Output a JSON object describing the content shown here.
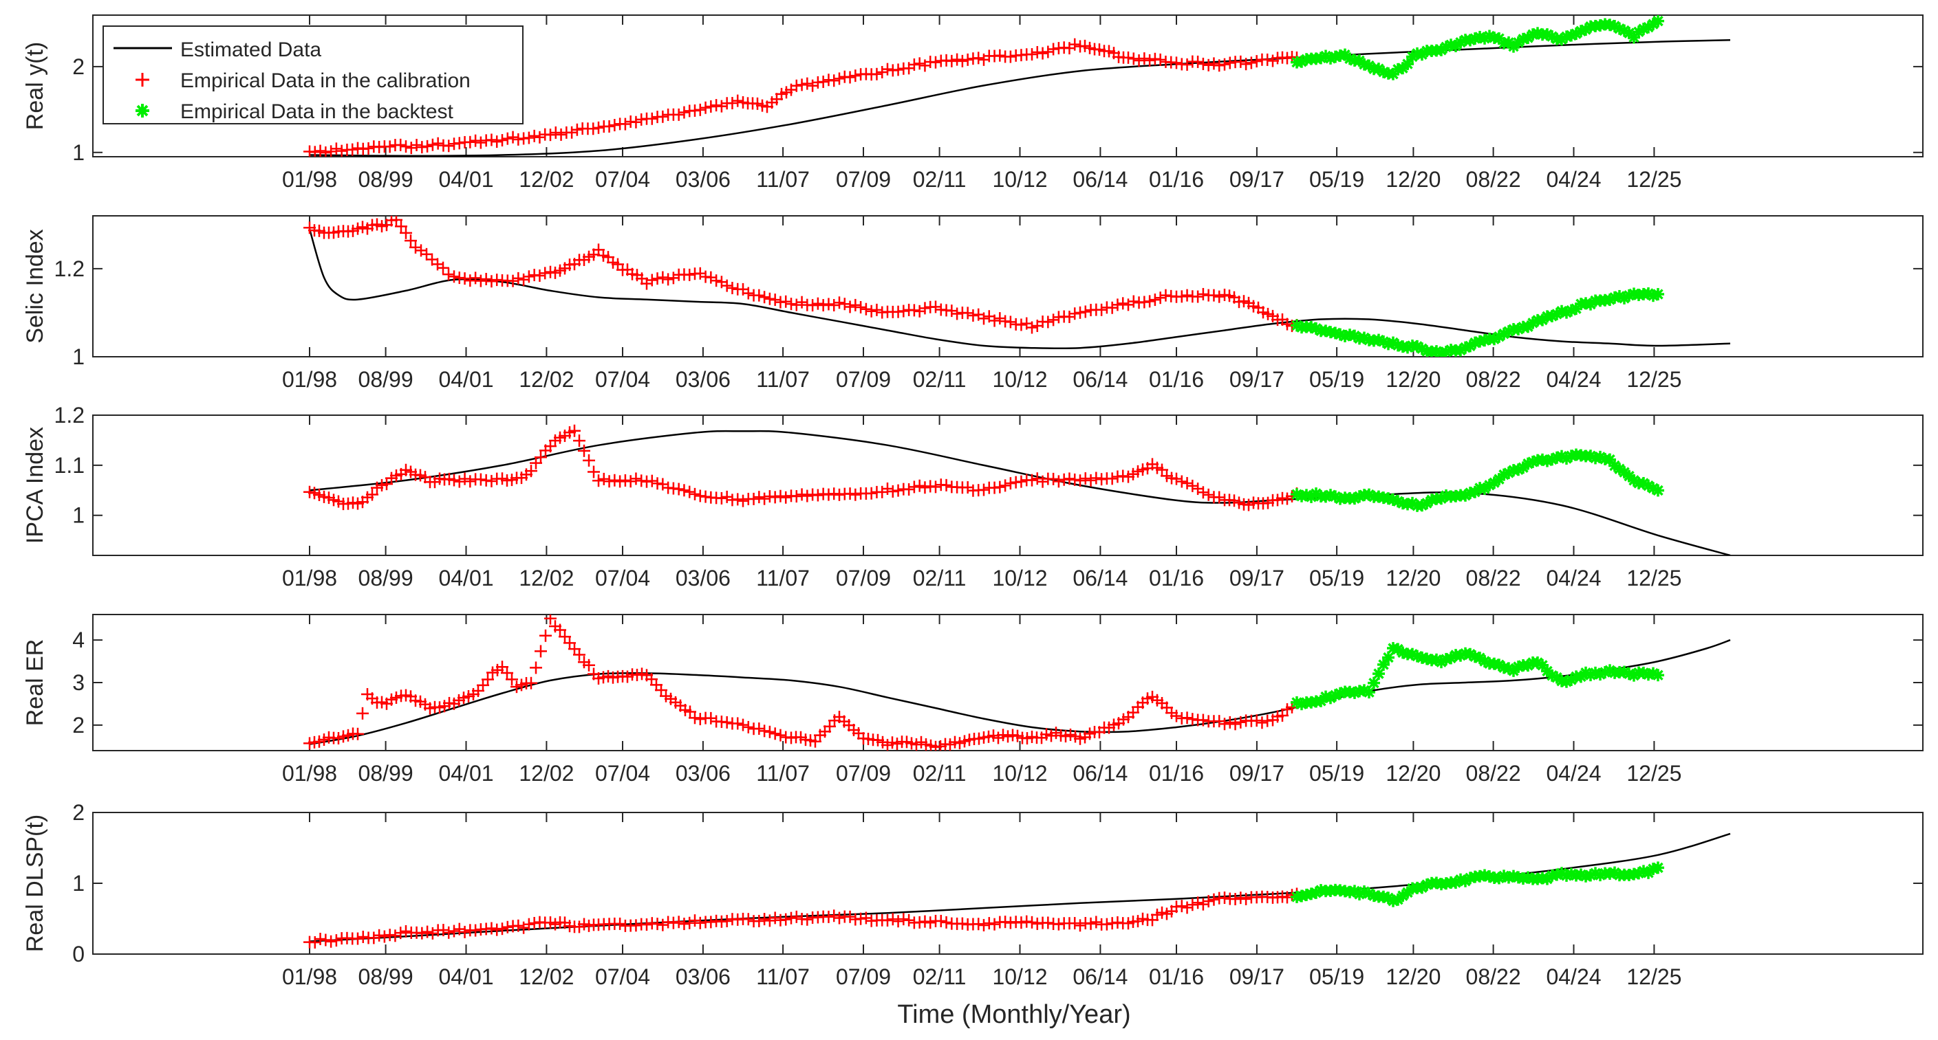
{
  "figure": {
    "xlabel": "Time (Monthly/Year)",
    "colors": {
      "estimated": "#000000",
      "calibration": "#ff0000",
      "backtest": "#00ee00",
      "axis": "#262626",
      "tick": "#262626"
    },
    "legend": {
      "position": "top-left of first panel",
      "entries": [
        {
          "label": "Estimated Data",
          "marker": "line"
        },
        {
          "label": "Empirical Data in the calibration",
          "marker": "plus"
        },
        {
          "label": "Empirical Data in the backtest",
          "marker": "star"
        }
      ]
    }
  },
  "chart_data": [
    {
      "type": "line",
      "ylabel": "Real y(t)",
      "x_unit": "years since 01/1998",
      "xlim": [
        -4.5,
        33.5
      ],
      "ylim": [
        0.95,
        2.6
      ],
      "yticks": [
        1,
        2
      ],
      "xticks": [
        0,
        1.58,
        3.25,
        4.92,
        6.5,
        8.17,
        9.83,
        11.5,
        13.08,
        14.75,
        16.42,
        18.0,
        19.67,
        21.33,
        22.92,
        24.58,
        26.25,
        27.92
      ],
      "xtick_labels": [
        "01/98",
        "08/99",
        "04/01",
        "12/02",
        "07/04",
        "03/06",
        "11/07",
        "07/09",
        "02/11",
        "10/12",
        "06/14",
        "01/16",
        "09/17",
        "05/19",
        "12/20",
        "08/22",
        "04/24",
        "12/25"
      ],
      "series": [
        {
          "name": "Estimated Data",
          "style": "line",
          "x": [
            0,
            2,
            4,
            6,
            8,
            10,
            12,
            14,
            16,
            18,
            20,
            22,
            24,
            26,
            28,
            29.5
          ],
          "y": [
            0.97,
            0.96,
            0.97,
            1.02,
            1.15,
            1.33,
            1.55,
            1.78,
            1.95,
            2.03,
            2.09,
            2.15,
            2.2,
            2.25,
            2.29,
            2.31
          ]
        },
        {
          "name": "Empirical Data in the calibration",
          "style": "plus",
          "x": [
            0,
            1,
            2,
            3,
            4,
            5,
            6,
            7,
            8,
            9,
            9.5,
            10,
            11,
            12,
            13,
            14,
            15,
            16,
            16.5,
            17,
            18,
            19,
            20,
            20.5
          ],
          "y": [
            1.0,
            1.05,
            1.07,
            1.1,
            1.15,
            1.2,
            1.3,
            1.38,
            1.5,
            1.6,
            1.55,
            1.75,
            1.85,
            1.95,
            2.05,
            2.1,
            2.15,
            2.25,
            2.18,
            2.1,
            2.05,
            2.02,
            2.08,
            2.12
          ]
        },
        {
          "name": "Empirical Data in the backtest",
          "style": "star",
          "x": [
            20.5,
            21,
            21.5,
            22,
            22.5,
            23,
            23.5,
            24,
            24.5,
            25,
            25.5,
            26,
            26.5,
            27,
            27.5,
            28
          ],
          "y": [
            2.05,
            2.1,
            2.13,
            2.0,
            1.9,
            2.15,
            2.2,
            2.3,
            2.35,
            2.25,
            2.4,
            2.3,
            2.45,
            2.5,
            2.35,
            2.55
          ]
        }
      ]
    },
    {
      "type": "line",
      "ylabel": "Selic Index",
      "x_unit": "years since 01/1998",
      "xlim": [
        -4.5,
        33.5
      ],
      "ylim": [
        1.0,
        1.32
      ],
      "yticks": [
        1,
        1.2
      ],
      "xticks": [
        0,
        1.58,
        3.25,
        4.92,
        6.5,
        8.17,
        9.83,
        11.5,
        13.08,
        14.75,
        16.42,
        18.0,
        19.67,
        21.33,
        22.92,
        24.58,
        26.25,
        27.92
      ],
      "xtick_labels": [
        "01/98",
        "08/99",
        "04/01",
        "12/02",
        "07/04",
        "03/06",
        "11/07",
        "07/09",
        "02/11",
        "10/12",
        "06/14",
        "01/16",
        "09/17",
        "05/19",
        "12/20",
        "08/22",
        "04/24",
        "12/25"
      ],
      "series": [
        {
          "name": "Estimated Data",
          "style": "line",
          "x": [
            0,
            0.3,
            0.6,
            1,
            2,
            3,
            4,
            5,
            6,
            7,
            8,
            9,
            10,
            11,
            12,
            13,
            14,
            15,
            16,
            17,
            18,
            19,
            20,
            21,
            22,
            23,
            24,
            25,
            26,
            27,
            28,
            29.5
          ],
          "y": [
            1.29,
            1.18,
            1.14,
            1.13,
            1.15,
            1.175,
            1.17,
            1.15,
            1.135,
            1.13,
            1.125,
            1.12,
            1.1,
            1.08,
            1.06,
            1.04,
            1.025,
            1.02,
            1.02,
            1.03,
            1.045,
            1.06,
            1.075,
            1.085,
            1.085,
            1.075,
            1.06,
            1.045,
            1.035,
            1.03,
            1.025,
            1.03
          ]
        },
        {
          "name": "Empirical Data in the calibration",
          "style": "plus",
          "x": [
            0,
            0.5,
            1,
            1.5,
            1.8,
            2.2,
            3,
            4,
            5,
            5.5,
            6,
            6.5,
            7,
            8,
            9,
            10,
            11,
            12,
            13,
            14,
            15,
            16,
            17,
            18,
            19,
            19.5,
            20,
            20.5
          ],
          "y": [
            1.29,
            1.28,
            1.29,
            1.3,
            1.31,
            1.25,
            1.18,
            1.17,
            1.19,
            1.21,
            1.24,
            1.2,
            1.17,
            1.19,
            1.15,
            1.12,
            1.12,
            1.1,
            1.11,
            1.09,
            1.07,
            1.1,
            1.12,
            1.14,
            1.14,
            1.12,
            1.09,
            1.07
          ]
        },
        {
          "name": "Empirical Data in the backtest",
          "style": "star",
          "x": [
            20.5,
            21,
            21.5,
            22,
            22.5,
            23,
            23.5,
            24,
            24.5,
            25,
            25.5,
            26,
            26.5,
            27,
            27.5,
            28
          ],
          "y": [
            1.07,
            1.06,
            1.05,
            1.04,
            1.03,
            1.02,
            1.01,
            1.02,
            1.04,
            1.06,
            1.08,
            1.1,
            1.12,
            1.13,
            1.14,
            1.14
          ]
        }
      ]
    },
    {
      "type": "line",
      "ylabel": "IPCA Index",
      "x_unit": "years since 01/1998",
      "xlim": [
        -4.5,
        33.5
      ],
      "ylim": [
        0.92,
        1.2
      ],
      "yticks": [
        1,
        1.1,
        1.2
      ],
      "xticks": [
        0,
        1.58,
        3.25,
        4.92,
        6.5,
        8.17,
        9.83,
        11.5,
        13.08,
        14.75,
        16.42,
        18.0,
        19.67,
        21.33,
        22.92,
        24.58,
        26.25,
        27.92
      ],
      "xtick_labels": [
        "01/98",
        "08/99",
        "04/01",
        "12/02",
        "07/04",
        "03/06",
        "11/07",
        "07/09",
        "02/11",
        "10/12",
        "06/14",
        "01/16",
        "09/17",
        "05/19",
        "12/20",
        "08/22",
        "04/24",
        "12/25"
      ],
      "series": [
        {
          "name": "Estimated Data",
          "style": "line",
          "x": [
            0,
            2,
            4,
            6,
            8,
            9,
            10,
            12,
            14,
            16,
            18,
            19,
            20,
            22,
            24,
            26,
            28,
            29.5
          ],
          "y": [
            1.05,
            1.07,
            1.1,
            1.14,
            1.165,
            1.168,
            1.165,
            1.14,
            1.1,
            1.06,
            1.03,
            1.025,
            1.03,
            1.04,
            1.045,
            1.02,
            0.96,
            0.92
          ]
        },
        {
          "name": "Empirical Data in the calibration",
          "style": "plus",
          "x": [
            0,
            0.5,
            1,
            1.5,
            2,
            2.5,
            3,
            4,
            4.5,
            5,
            5.5,
            6,
            7,
            8,
            9,
            10,
            11,
            12,
            13,
            14,
            15,
            16,
            17,
            17.5,
            18,
            19,
            19.5,
            20,
            20.5
          ],
          "y": [
            1.05,
            1.03,
            1.02,
            1.06,
            1.09,
            1.07,
            1.07,
            1.07,
            1.08,
            1.14,
            1.17,
            1.07,
            1.07,
            1.04,
            1.03,
            1.04,
            1.04,
            1.05,
            1.06,
            1.05,
            1.07,
            1.07,
            1.08,
            1.1,
            1.07,
            1.03,
            1.02,
            1.03,
            1.04
          ]
        },
        {
          "name": "Empirical Data in the backtest",
          "style": "star",
          "x": [
            20.5,
            21,
            21.5,
            22,
            22.5,
            23,
            23.5,
            24,
            24.5,
            25,
            25.5,
            26,
            26.5,
            27,
            27.5,
            28
          ],
          "y": [
            1.04,
            1.04,
            1.035,
            1.04,
            1.03,
            1.02,
            1.035,
            1.04,
            1.06,
            1.09,
            1.11,
            1.115,
            1.12,
            1.11,
            1.07,
            1.05
          ]
        }
      ]
    },
    {
      "type": "line",
      "ylabel": "Real ER",
      "x_unit": "years since 01/1998",
      "xlim": [
        -4.5,
        33.5
      ],
      "ylim": [
        1.4,
        4.6
      ],
      "yticks": [
        2,
        3,
        4
      ],
      "xticks": [
        0,
        1.58,
        3.25,
        4.92,
        6.5,
        8.17,
        9.83,
        11.5,
        13.08,
        14.75,
        16.42,
        18.0,
        19.67,
        21.33,
        22.92,
        24.58,
        26.25,
        27.92
      ],
      "xtick_labels": [
        "01/98",
        "08/99",
        "04/01",
        "12/02",
        "07/04",
        "03/06",
        "11/07",
        "07/09",
        "02/11",
        "10/12",
        "06/14",
        "01/16",
        "09/17",
        "05/19",
        "12/20",
        "08/22",
        "04/24",
        "12/25"
      ],
      "series": [
        {
          "name": "Estimated Data",
          "style": "line",
          "x": [
            0,
            1,
            2,
            3,
            4,
            5,
            6,
            7,
            8,
            9,
            10,
            11,
            12,
            13,
            14,
            15,
            16,
            17,
            18,
            19,
            20,
            21,
            22,
            23,
            24,
            25,
            26,
            27,
            28,
            29,
            29.5
          ],
          "y": [
            1.55,
            1.75,
            2.05,
            2.4,
            2.75,
            3.05,
            3.2,
            3.22,
            3.18,
            3.12,
            3.05,
            2.9,
            2.65,
            2.4,
            2.15,
            1.95,
            1.85,
            1.85,
            1.95,
            2.1,
            2.3,
            2.55,
            2.8,
            2.95,
            3.0,
            3.05,
            3.15,
            3.3,
            3.5,
            3.8,
            4.0
          ]
        },
        {
          "name": "Empirical Data in the calibration",
          "style": "plus",
          "x": [
            0,
            0.5,
            1,
            1.2,
            1.5,
            2,
            2.5,
            3,
            3.5,
            3.8,
            4,
            4.3,
            4.6,
            5,
            5.5,
            6,
            6.5,
            7,
            7.5,
            8,
            9,
            10,
            10.5,
            11,
            11.5,
            12,
            12.5,
            13,
            13.5,
            14,
            14.5,
            15,
            15.5,
            16,
            16.5,
            17,
            17.5,
            18,
            19,
            20,
            20.5
          ],
          "y": [
            1.6,
            1.7,
            1.8,
            2.7,
            2.5,
            2.7,
            2.4,
            2.5,
            2.8,
            3.2,
            3.4,
            2.9,
            3.0,
            4.5,
            3.8,
            3.1,
            3.15,
            3.2,
            2.6,
            2.2,
            2.0,
            1.7,
            1.65,
            2.2,
            1.7,
            1.55,
            1.6,
            1.5,
            1.6,
            1.7,
            1.75,
            1.7,
            1.8,
            1.7,
            1.9,
            2.2,
            2.7,
            2.2,
            2.05,
            2.1,
            2.5
          ]
        },
        {
          "name": "Empirical Data in the backtest",
          "style": "star",
          "x": [
            20.5,
            21,
            21.5,
            22,
            22.5,
            23,
            23.5,
            24,
            24.5,
            25,
            25.5,
            26,
            26.5,
            27,
            27.5,
            28
          ],
          "y": [
            2.5,
            2.6,
            2.75,
            2.8,
            3.8,
            3.6,
            3.5,
            3.7,
            3.45,
            3.3,
            3.5,
            3.0,
            3.2,
            3.25,
            3.2,
            3.2
          ]
        }
      ]
    },
    {
      "type": "line",
      "ylabel": "Real DLSP(t)",
      "x_unit": "years since 01/1998",
      "xlim": [
        -4.5,
        33.5
      ],
      "ylim": [
        0,
        2
      ],
      "yticks": [
        0,
        1,
        2
      ],
      "xticks": [
        0,
        1.58,
        3.25,
        4.92,
        6.5,
        8.17,
        9.83,
        11.5,
        13.08,
        14.75,
        16.42,
        18.0,
        19.67,
        21.33,
        22.92,
        24.58,
        26.25,
        27.92
      ],
      "xtick_labels": [
        "01/98",
        "08/99",
        "04/01",
        "12/02",
        "07/04",
        "03/06",
        "11/07",
        "07/09",
        "02/11",
        "10/12",
        "06/14",
        "01/16",
        "09/17",
        "05/19",
        "12/20",
        "08/22",
        "04/24",
        "12/25"
      ],
      "series": [
        {
          "name": "Estimated Data",
          "style": "line",
          "x": [
            0,
            2,
            4,
            6,
            8,
            10,
            12,
            14,
            16,
            18,
            20,
            22,
            24,
            26,
            28,
            29.5
          ],
          "y": [
            0.18,
            0.25,
            0.33,
            0.4,
            0.47,
            0.53,
            0.58,
            0.65,
            0.72,
            0.78,
            0.85,
            0.93,
            1.05,
            1.2,
            1.4,
            1.7
          ]
        },
        {
          "name": "Empirical Data in the calibration",
          "style": "plus",
          "x": [
            0,
            1,
            2,
            3,
            4,
            5,
            5.5,
            6,
            7,
            8,
            9,
            10,
            11,
            12,
            13,
            14,
            15,
            16,
            17,
            17.5,
            18,
            19,
            20,
            20.5
          ],
          "y": [
            0.18,
            0.22,
            0.3,
            0.33,
            0.35,
            0.45,
            0.4,
            0.42,
            0.42,
            0.45,
            0.48,
            0.5,
            0.52,
            0.48,
            0.45,
            0.42,
            0.45,
            0.42,
            0.45,
            0.5,
            0.65,
            0.78,
            0.82,
            0.83
          ]
        },
        {
          "name": "Empirical Data in the backtest",
          "style": "star",
          "x": [
            20.5,
            21,
            21.5,
            22,
            22.5,
            23,
            23.5,
            24,
            24.5,
            25,
            25.5,
            26,
            26.5,
            27,
            27.5,
            28
          ],
          "y": [
            0.83,
            0.88,
            0.9,
            0.85,
            0.75,
            0.95,
            1.0,
            1.05,
            1.1,
            1.08,
            1.05,
            1.12,
            1.1,
            1.15,
            1.12,
            1.2
          ]
        }
      ]
    }
  ]
}
